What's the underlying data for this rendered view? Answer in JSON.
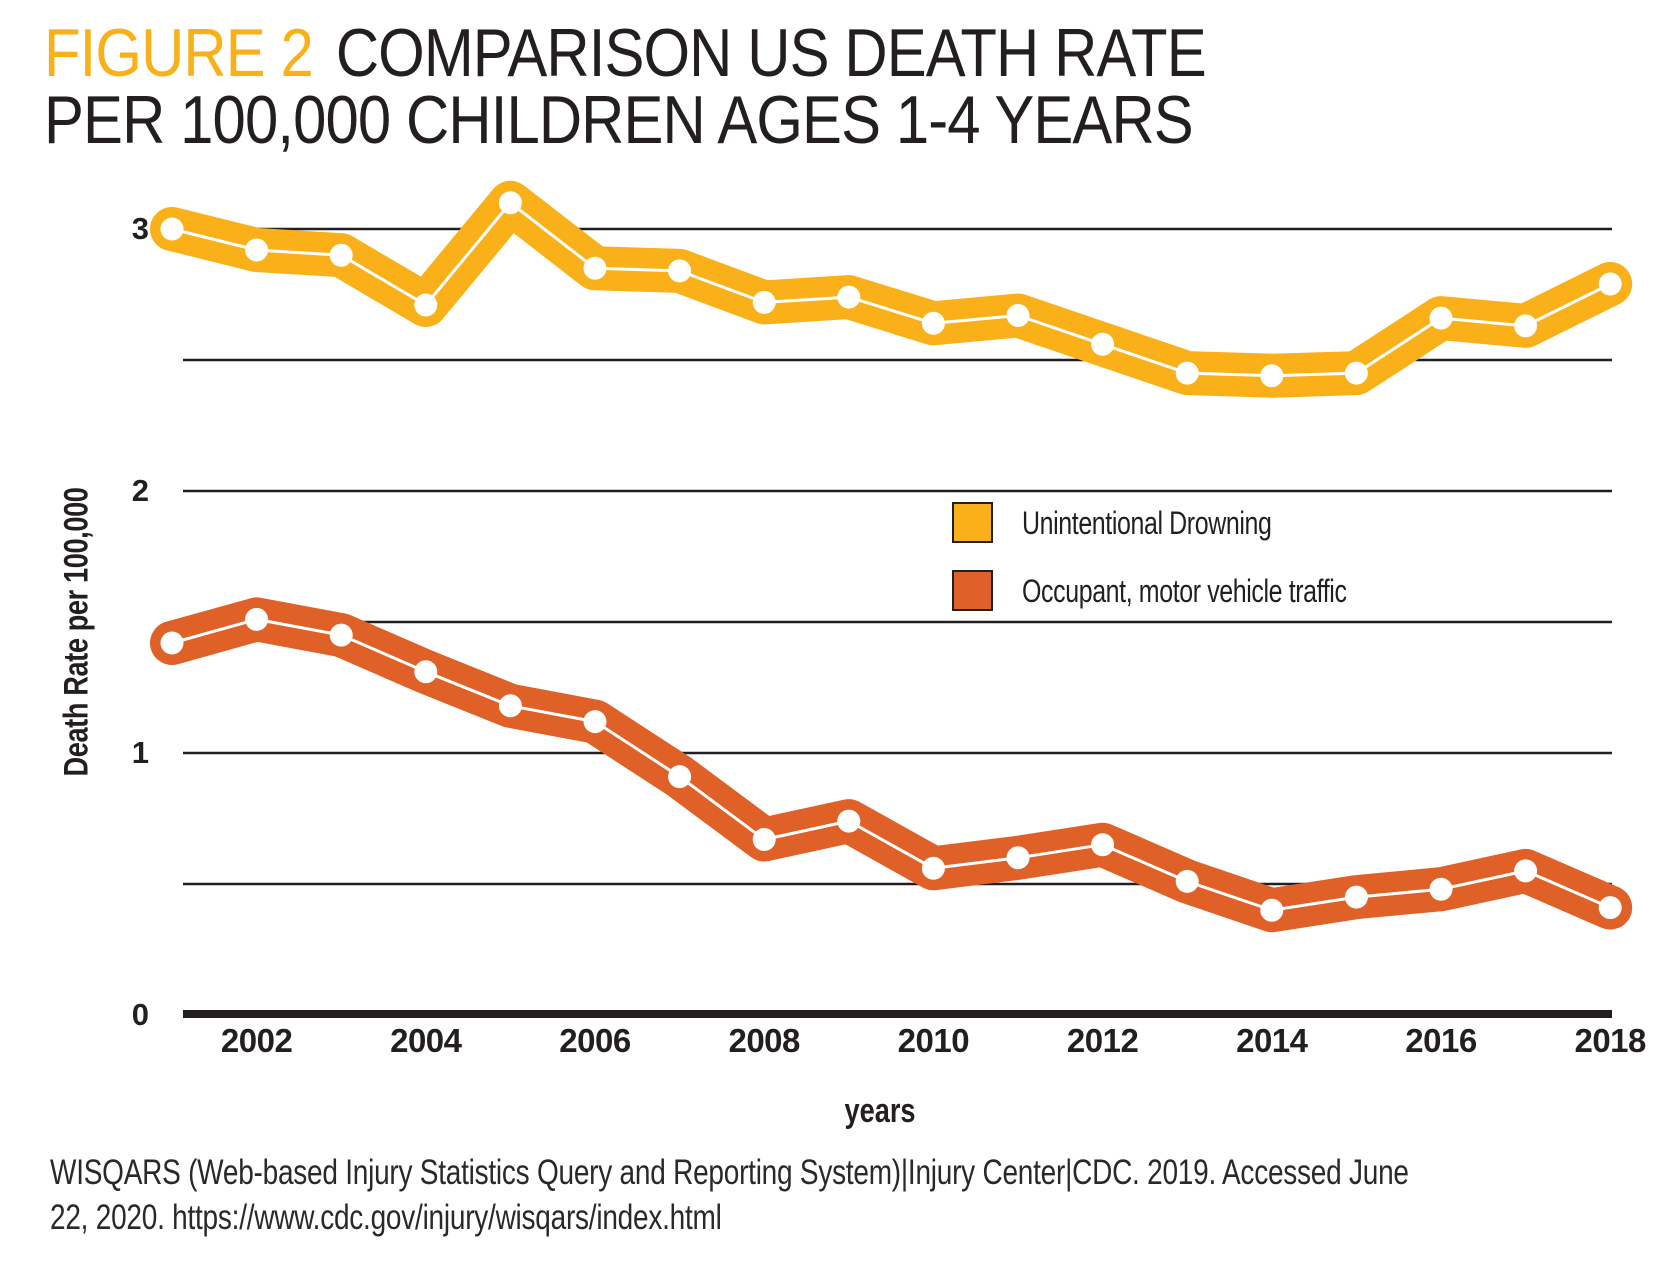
{
  "title": {
    "figure_label": "FIGURE 2",
    "line1": "COMPARISON US DEATH RATE",
    "line2": "PER 100,000 CHILDREN AGES 1-4 YEARS"
  },
  "colors": {
    "accent_yellow": "#F9B019",
    "accent_orange": "#E06127",
    "ink": "#231F20",
    "footer_text": "#2B2829"
  },
  "chart_data": {
    "type": "line",
    "x": [
      2001,
      2002,
      2003,
      2004,
      2005,
      2006,
      2007,
      2008,
      2009,
      2010,
      2011,
      2012,
      2013,
      2014,
      2015,
      2016,
      2017,
      2018
    ],
    "x_tick_labels": [
      "2002",
      "2004",
      "2006",
      "2008",
      "2010",
      "2012",
      "2014",
      "2016",
      "2018"
    ],
    "y_tick_labels": [
      "0",
      "1",
      "2",
      "3"
    ],
    "y_tick_values": [
      0,
      1,
      2,
      3
    ],
    "gridlines_at": [
      0.5,
      1,
      1.5,
      2,
      2.5,
      3
    ],
    "ylim": [
      0,
      3.3
    ],
    "xlabel": "years",
    "ylabel": "Death Rate per 100,000",
    "legend_position": "inside right",
    "series": [
      {
        "name": "Unintentional Drowning",
        "color": "#F9B019",
        "values": [
          3.0,
          2.92,
          2.9,
          2.71,
          3.1,
          2.85,
          2.84,
          2.72,
          2.74,
          2.64,
          2.67,
          2.56,
          2.45,
          2.44,
          2.45,
          2.66,
          2.63,
          2.79
        ]
      },
      {
        "name": "Occupant, motor vehicle traffic",
        "color": "#E06127",
        "values": [
          1.42,
          1.51,
          1.45,
          1.31,
          1.18,
          1.12,
          0.91,
          0.67,
          0.74,
          0.56,
          0.6,
          0.65,
          0.51,
          0.4,
          0.45,
          0.48,
          0.55,
          0.41
        ]
      }
    ]
  },
  "footer": {
    "line1": "WISQARS (Web-based Injury Statistics Query and Reporting System)|Injury Center|CDC. 2019. Accessed June",
    "line2": "22, 2020. https://www.cdc.gov/injury/wisqars/index.html"
  }
}
